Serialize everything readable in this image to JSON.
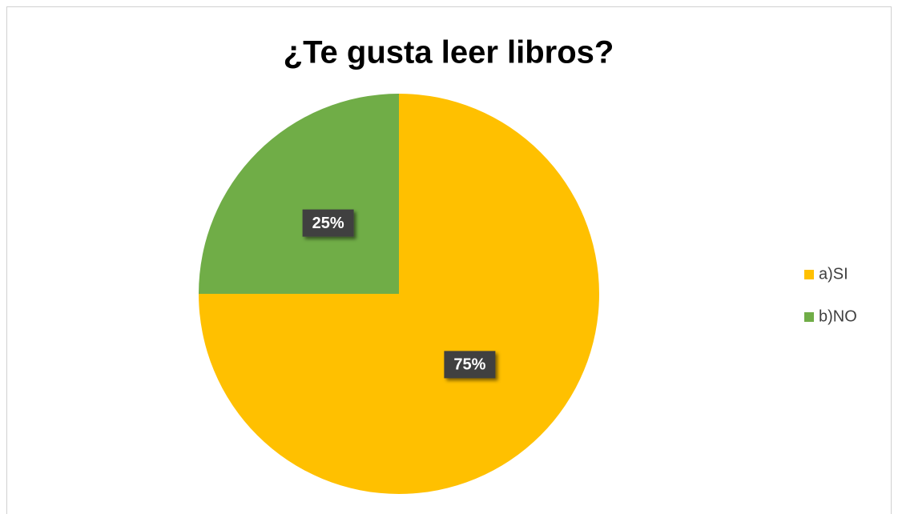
{
  "chart_data": {
    "type": "pie",
    "title": "¿Te gusta leer libros?",
    "categories": [
      "a)SI",
      "b)NO"
    ],
    "values": [
      75,
      25
    ],
    "value_labels": [
      "75%",
      "25%"
    ],
    "colors": [
      "#FFC000",
      "#70AD47"
    ],
    "legend": "right"
  }
}
